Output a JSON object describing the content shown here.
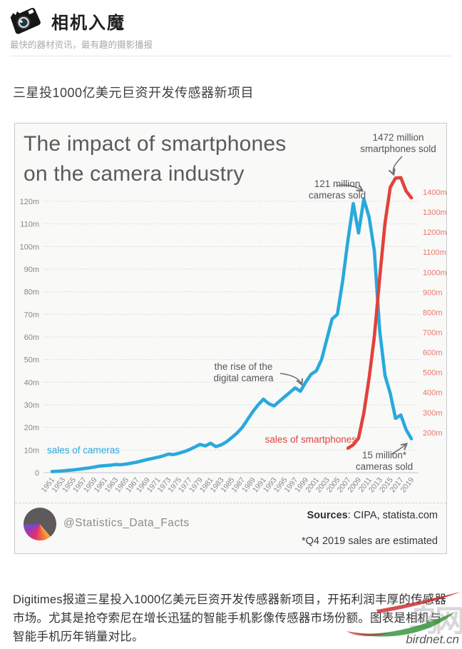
{
  "header": {
    "site_title": "相机入魔",
    "tagline": "最快的器材资讯，最有趣的摄影播报"
  },
  "article": {
    "title": "三星投1000亿美元巨资开发传感器新项目",
    "body": "Digitimes报道三星投入1000亿美元巨资开发传感器新项目，开拓利润丰厚的传感器市场。尤其是抢夺索尼在增长迅猛的智能手机影像传感器市场份额。图表是相机与智能手机历年销量对比。"
  },
  "infographic": {
    "title_line1": "The impact of smartphones",
    "title_line2": "on the camera industry",
    "annotations": {
      "smartphones_peak": "1472 million\nsmartphones sold",
      "cameras_peak": "121 million\ncameras sold",
      "digital_rise": "the rise of the\ndigital camera",
      "cameras_end": "15 million*\ncameras sold",
      "cameras_series_label": "sales of cameras",
      "smartphones_series_label": "sales of smartphones"
    },
    "footer": {
      "handle": "@Statistics_Data_Facts",
      "sources_label": "Sources",
      "sources_value": ": CIPA, statista.com",
      "note": "*Q4 2019 sales are estimated"
    },
    "colors": {
      "cameras": "#29a9dd",
      "smartphones": "#e2423b",
      "left_axis_labels": "#87878a",
      "right_axis_labels": "#e4786e",
      "grid": "#cfcfce",
      "axis_line": "#c4c4c4"
    }
  },
  "watermark": {
    "cn_text": "鸟网",
    "site_text": "birdnet.cn",
    "red": "#c5242b",
    "green": "#37963f"
  },
  "chart_data": {
    "type": "line",
    "title": "The impact of smartphones on the camera industry",
    "x_ticks": [
      1951,
      1953,
      1955,
      1957,
      1959,
      1961,
      1963,
      1965,
      1967,
      1969,
      1971,
      1973,
      1975,
      1977,
      1979,
      1981,
      1983,
      1985,
      1987,
      1989,
      1991,
      1993,
      1995,
      1997,
      1999,
      2001,
      2003,
      2005,
      2007,
      2009,
      2011,
      2013,
      2015,
      2017,
      2019
    ],
    "left_axis": {
      "min": 0,
      "max": 120,
      "step": 10,
      "unit": "m"
    },
    "right_axis": {
      "min": 0,
      "max": 1400,
      "step": 100,
      "label_min": 200,
      "unit": "m"
    },
    "grid": true,
    "legend": "inline-labels",
    "series": [
      {
        "name": "sales of cameras",
        "axis": "left",
        "color": "#29a9dd",
        "start_year": 1951,
        "values": [
          0.5,
          0.6,
          0.8,
          1.0,
          1.2,
          1.5,
          1.8,
          2.1,
          2.5,
          2.9,
          3.1,
          3.3,
          3.6,
          3.5,
          3.8,
          4.2,
          4.6,
          5.2,
          5.8,
          6.3,
          6.8,
          7.4,
          8.2,
          8.0,
          8.6,
          9.3,
          10.2,
          11.3,
          12.5,
          11.8,
          13.0,
          11.5,
          12.3,
          13.6,
          15.5,
          17.5,
          20.0,
          23.5,
          27.0,
          30.0,
          32.5,
          30.5,
          29.5,
          31.5,
          33.5,
          35.5,
          37.5,
          36.0,
          40.0,
          43.5,
          45.0,
          50.0,
          59.0,
          68.0,
          70.0,
          85.0,
          103.0,
          119.0,
          106.0,
          121.0,
          113.0,
          98.0,
          63.0,
          43.0,
          35.0,
          24.0,
          25.5,
          19.0,
          15.0
        ]
      },
      {
        "name": "sales of smartphones",
        "axis": "right",
        "color": "#e2423b",
        "start_year": 2007,
        "values": [
          122,
          139,
          172,
          297,
          472,
          680,
          970,
          1245,
          1424,
          1470,
          1472,
          1405,
          1371
        ]
      }
    ]
  }
}
